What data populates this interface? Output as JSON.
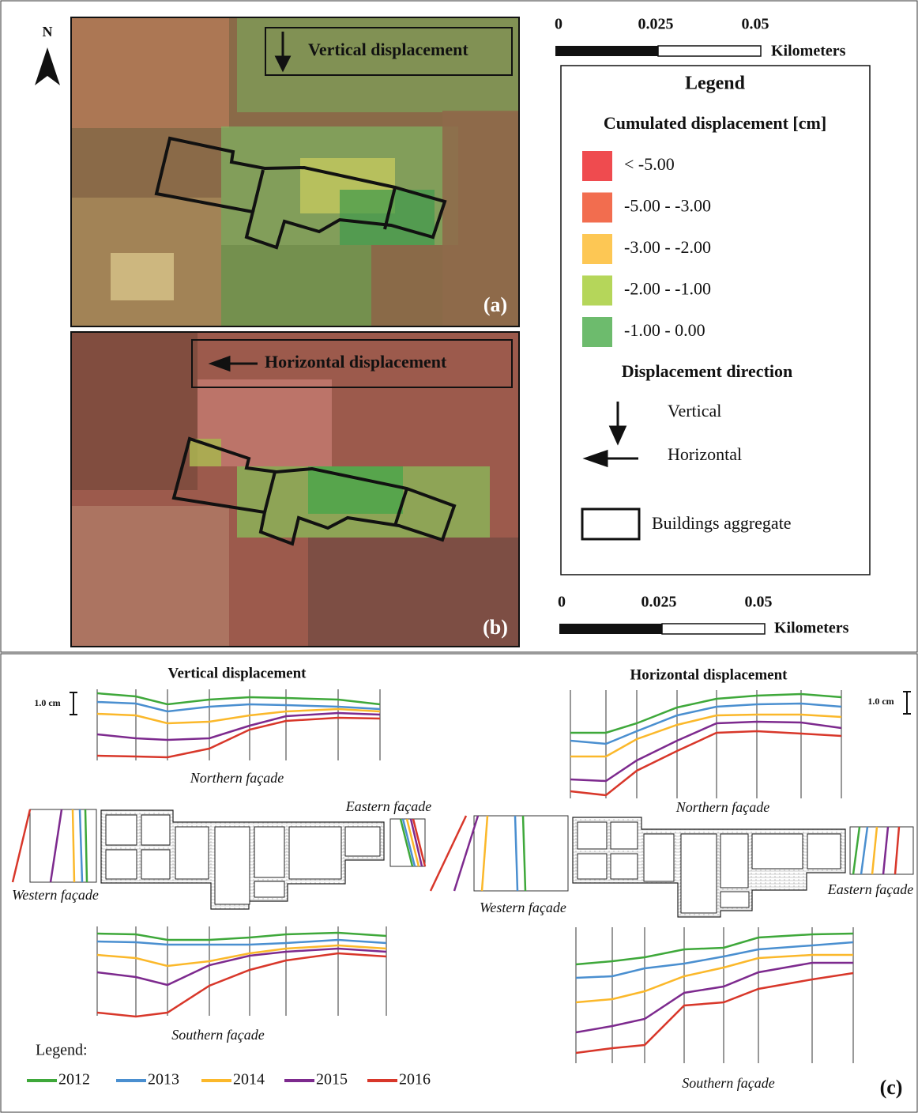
{
  "maps": {
    "north": "N",
    "a": {
      "title": "Vertical displacement",
      "tag": "(a)"
    },
    "b": {
      "title": "Horizontal displacement",
      "tag": "(b)"
    },
    "scale_top": {
      "ticks": [
        "0",
        "0.025",
        "0.05"
      ],
      "unit": "Kilometers"
    },
    "scale_bottom": {
      "ticks": [
        "0",
        "0.025",
        "0.05"
      ],
      "unit": "Kilometers"
    }
  },
  "legend": {
    "title": "Legend",
    "subtitle": "Cumulated displacement [cm]",
    "classes": [
      {
        "label": "< -5.00",
        "color": "#ef4b4f"
      },
      {
        "label": "-5.00 - -3.00",
        "color": "#f26d4f"
      },
      {
        "label": "-3.00 - -2.00",
        "color": "#fdc754"
      },
      {
        "label": "-2.00 - -1.00",
        "color": "#b5d65a"
      },
      {
        "label": "-1.00 - 0.00",
        "color": "#6dbb6d"
      }
    ],
    "direction_title": "Displacement direction",
    "vertical": "Vertical",
    "horizontal": "Horizontal",
    "buildings": "Buildings aggregate"
  },
  "profiles": {
    "tag": "(c)",
    "vertical_title": "Vertical displacement",
    "horizontal_title": "Horizontal displacement",
    "scale_v": "1.0 cm",
    "scale_h": "1.0 cm",
    "v_north": "Northern façade",
    "v_south": "Southern façade",
    "v_west": "Western façade",
    "v_east": "Eastern façade",
    "h_north": "Northern façade",
    "h_south": "Southern façade",
    "h_west": "Western façade",
    "h_east": "Eastern façade",
    "legend_title": "Legend:",
    "years": [
      {
        "name": "2012",
        "color": "#3ea83a"
      },
      {
        "name": "2013",
        "color": "#4a8fd0"
      },
      {
        "name": "2014",
        "color": "#fbb82a"
      },
      {
        "name": "2015",
        "color": "#7d2a8e"
      },
      {
        "name": "2016",
        "color": "#d8372a"
      }
    ]
  }
}
